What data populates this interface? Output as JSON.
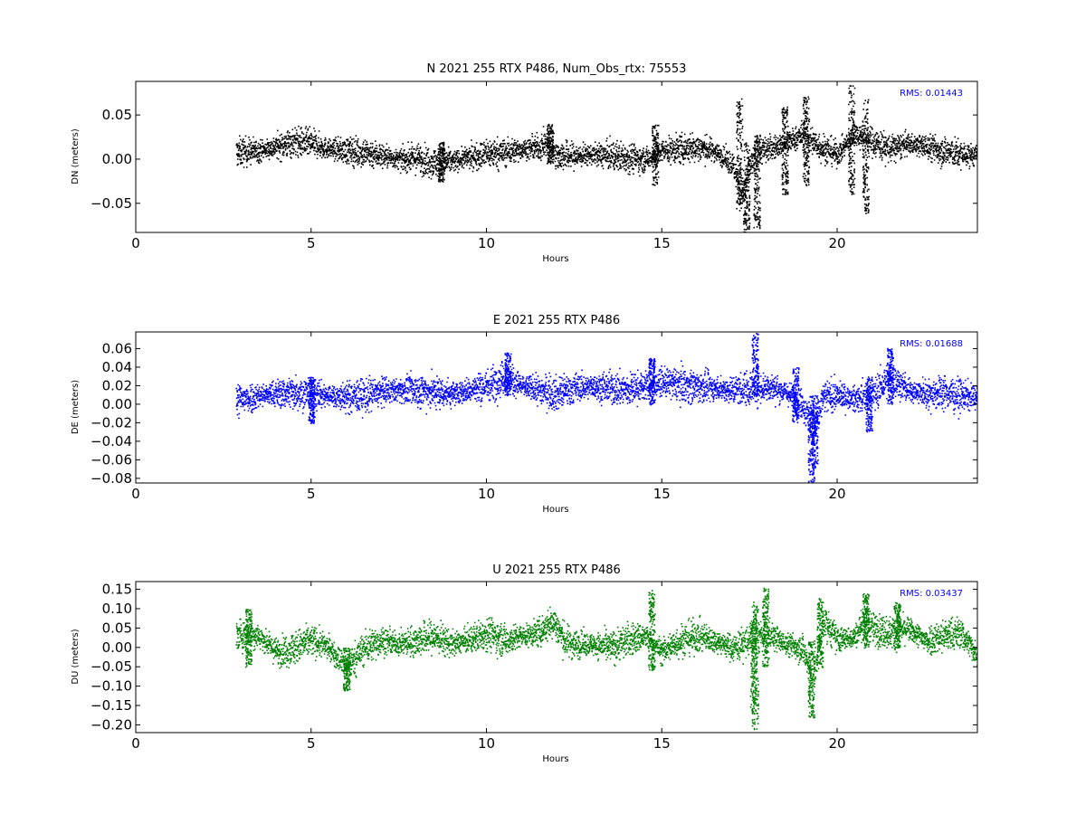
{
  "colors": {
    "black": "#000000",
    "blue": "#0000ff",
    "green": "#008000"
  },
  "chart_data": [
    {
      "type": "scatter",
      "title": "N 2021 255 RTX  P486, Num_Obs_rtx: 75553",
      "xlabel": "Hours",
      "ylabel": "DN (meters)",
      "xlim": [
        0,
        24
      ],
      "ylim": [
        -0.083,
        0.088
      ],
      "xticks": [
        0,
        5,
        10,
        15,
        20
      ],
      "yticks": [
        -0.05,
        0.0,
        0.05
      ],
      "ytick_labels": [
        "−0.05",
        "0.00",
        "0.05"
      ],
      "x_range": [
        2.85,
        24.0
      ],
      "annotation": "RMS:  0.01443",
      "color": "#000000",
      "series": [
        {
          "points": [
            [
              2.9,
              0.008
            ],
            [
              3.0,
              0.009
            ],
            [
              3.5,
              0.01
            ],
            [
              4.0,
              0.015
            ],
            [
              4.5,
              0.02
            ],
            [
              5.0,
              0.018
            ],
            [
              5.5,
              0.012
            ],
            [
              6.0,
              0.01
            ],
            [
              6.5,
              0.008
            ],
            [
              7.0,
              0.005
            ],
            [
              7.5,
              0.0
            ],
            [
              8.0,
              0.002
            ],
            [
              8.5,
              -0.003
            ],
            [
              9.0,
              -0.002
            ],
            [
              9.5,
              0.003
            ],
            [
              10.0,
              0.007
            ],
            [
              10.5,
              0.008
            ],
            [
              11.0,
              0.012
            ],
            [
              11.5,
              0.014
            ],
            [
              11.8,
              0.02
            ],
            [
              12.0,
              0.005
            ],
            [
              12.5,
              0.004
            ],
            [
              13.0,
              0.006
            ],
            [
              13.5,
              0.004
            ],
            [
              14.0,
              0.003
            ],
            [
              14.5,
              0.0
            ],
            [
              15.0,
              0.01
            ],
            [
              15.5,
              0.012
            ],
            [
              16.0,
              0.014
            ],
            [
              16.5,
              0.01
            ],
            [
              17.0,
              -0.005
            ],
            [
              17.3,
              -0.04
            ],
            [
              17.5,
              -0.01
            ],
            [
              17.7,
              0.01
            ],
            [
              18.0,
              0.012
            ],
            [
              18.5,
              0.018
            ],
            [
              19.0,
              0.028
            ],
            [
              19.5,
              0.015
            ],
            [
              20.0,
              0.006
            ],
            [
              20.5,
              0.03
            ],
            [
              21.0,
              0.02
            ],
            [
              21.5,
              0.012
            ],
            [
              22.0,
              0.018
            ],
            [
              22.5,
              0.015
            ],
            [
              23.0,
              0.01
            ],
            [
              23.5,
              0.006
            ],
            [
              24.0,
              0.005
            ]
          ],
          "spread": 0.011,
          "spikes": [
            {
              "x": 17.4,
              "low": -0.082,
              "high": 0.02
            },
            {
              "x": 17.7,
              "low": -0.078,
              "high": 0.03
            },
            {
              "x": 17.2,
              "low": -0.06,
              "high": 0.07
            },
            {
              "x": 18.5,
              "low": -0.04,
              "high": 0.06
            },
            {
              "x": 19.1,
              "low": -0.03,
              "high": 0.072
            },
            {
              "x": 20.4,
              "low": -0.04,
              "high": 0.085
            },
            {
              "x": 20.8,
              "low": -0.062,
              "high": 0.07
            },
            {
              "x": 11.8,
              "low": -0.005,
              "high": 0.04
            },
            {
              "x": 14.8,
              "low": -0.03,
              "high": 0.04
            },
            {
              "x": 8.7,
              "low": -0.025,
              "high": 0.02
            }
          ]
        }
      ]
    },
    {
      "type": "scatter",
      "title": "E 2021 255 RTX  P486",
      "xlabel": "Hours",
      "ylabel": "DE (meters)",
      "xlim": [
        0,
        24
      ],
      "ylim": [
        -0.085,
        0.078
      ],
      "xticks": [
        0,
        5,
        10,
        15,
        20
      ],
      "yticks": [
        -0.08,
        -0.06,
        -0.04,
        -0.02,
        0.0,
        0.02,
        0.04,
        0.06
      ],
      "ytick_labels": [
        "−0.08",
        "−0.06",
        "−0.04",
        "−0.02",
        "0.00",
        "0.02",
        "0.04",
        "0.06"
      ],
      "x_range": [
        2.85,
        24.0
      ],
      "annotation": "RMS:  0.01688",
      "color": "#0000ff",
      "series": [
        {
          "points": [
            [
              2.9,
              0.005
            ],
            [
              3.5,
              0.01
            ],
            [
              4.0,
              0.012
            ],
            [
              4.5,
              0.014
            ],
            [
              5.0,
              0.012
            ],
            [
              5.5,
              0.01
            ],
            [
              6.0,
              0.008
            ],
            [
              6.5,
              0.01
            ],
            [
              7.0,
              0.014
            ],
            [
              7.5,
              0.016
            ],
            [
              8.0,
              0.016
            ],
            [
              8.5,
              0.014
            ],
            [
              9.0,
              0.012
            ],
            [
              9.5,
              0.016
            ],
            [
              10.0,
              0.02
            ],
            [
              10.5,
              0.03
            ],
            [
              11.0,
              0.02
            ],
            [
              11.5,
              0.016
            ],
            [
              12.0,
              0.012
            ],
            [
              12.5,
              0.018
            ],
            [
              13.0,
              0.02
            ],
            [
              13.5,
              0.018
            ],
            [
              14.0,
              0.016
            ],
            [
              14.5,
              0.02
            ],
            [
              15.0,
              0.024
            ],
            [
              15.5,
              0.022
            ],
            [
              16.0,
              0.02
            ],
            [
              16.5,
              0.018
            ],
            [
              17.0,
              0.016
            ],
            [
              17.5,
              0.018
            ],
            [
              18.0,
              0.02
            ],
            [
              18.5,
              0.014
            ],
            [
              19.0,
              0.0
            ],
            [
              19.3,
              -0.03
            ],
            [
              19.6,
              0.008
            ],
            [
              20.0,
              0.01
            ],
            [
              20.5,
              0.006
            ],
            [
              21.0,
              0.01
            ],
            [
              21.5,
              0.03
            ],
            [
              22.0,
              0.016
            ],
            [
              22.5,
              0.012
            ],
            [
              23.0,
              0.014
            ],
            [
              23.5,
              0.01
            ],
            [
              24.0,
              0.008
            ]
          ],
          "spread": 0.012,
          "spikes": [
            {
              "x": 17.65,
              "low": 0.01,
              "high": 0.077
            },
            {
              "x": 19.25,
              "low": -0.085,
              "high": 0.01
            },
            {
              "x": 19.35,
              "low": -0.07,
              "high": 0.01
            },
            {
              "x": 14.7,
              "low": 0.0,
              "high": 0.05
            },
            {
              "x": 10.6,
              "low": 0.01,
              "high": 0.056
            },
            {
              "x": 21.5,
              "low": 0.0,
              "high": 0.062
            },
            {
              "x": 20.9,
              "low": -0.03,
              "high": 0.03
            },
            {
              "x": 5.0,
              "low": -0.02,
              "high": 0.03
            },
            {
              "x": 18.8,
              "low": -0.02,
              "high": 0.04
            }
          ]
        }
      ]
    },
    {
      "type": "scatter",
      "title": "U 2021 255 RTX  P486",
      "xlabel": "Hours",
      "ylabel": "DU (meters)",
      "xlim": [
        0,
        24
      ],
      "ylim": [
        -0.22,
        0.17
      ],
      "xticks": [
        0,
        5,
        10,
        15,
        20
      ],
      "yticks": [
        -0.2,
        -0.15,
        -0.1,
        -0.05,
        0.0,
        0.05,
        0.1,
        0.15
      ],
      "ytick_labels": [
        "−0.20",
        "−0.15",
        "−0.10",
        "−0.05",
        "0.00",
        "0.05",
        "0.10",
        "0.15"
      ],
      "x_range": [
        2.85,
        24.0
      ],
      "annotation": "RMS:  0.03437",
      "color": "#008000",
      "series": [
        {
          "points": [
            [
              2.9,
              0.03
            ],
            [
              3.2,
              0.04
            ],
            [
              3.5,
              0.03
            ],
            [
              4.0,
              -0.01
            ],
            [
              4.5,
              0.0
            ],
            [
              5.0,
              0.02
            ],
            [
              5.5,
              0.0
            ],
            [
              6.0,
              -0.05
            ],
            [
              6.5,
              0.0
            ],
            [
              7.0,
              0.02
            ],
            [
              7.5,
              0.01
            ],
            [
              8.0,
              0.02
            ],
            [
              8.5,
              0.03
            ],
            [
              9.0,
              0.01
            ],
            [
              9.5,
              0.02
            ],
            [
              10.0,
              0.04
            ],
            [
              10.5,
              0.02
            ],
            [
              11.0,
              0.03
            ],
            [
              11.5,
              0.04
            ],
            [
              11.9,
              0.07
            ],
            [
              12.2,
              0.02
            ],
            [
              12.5,
              0.01
            ],
            [
              13.0,
              0.01
            ],
            [
              13.5,
              0.0
            ],
            [
              14.0,
              0.02
            ],
            [
              14.5,
              0.03
            ],
            [
              15.0,
              -0.01
            ],
            [
              15.5,
              0.02
            ],
            [
              16.0,
              0.03
            ],
            [
              16.5,
              0.02
            ],
            [
              17.0,
              0.0
            ],
            [
              17.5,
              0.02
            ],
            [
              18.0,
              0.04
            ],
            [
              18.5,
              0.01
            ],
            [
              19.0,
              0.0
            ],
            [
              19.3,
              -0.08
            ],
            [
              19.6,
              0.07
            ],
            [
              20.0,
              0.02
            ],
            [
              20.5,
              0.03
            ],
            [
              20.8,
              0.08
            ],
            [
              21.0,
              0.05
            ],
            [
              21.5,
              0.04
            ],
            [
              22.0,
              0.05
            ],
            [
              22.5,
              0.02
            ],
            [
              23.0,
              0.03
            ],
            [
              23.5,
              0.04
            ],
            [
              24.0,
              -0.02
            ]
          ],
          "spread": 0.028,
          "spikes": [
            {
              "x": 17.65,
              "low": -0.21,
              "high": 0.12
            },
            {
              "x": 17.6,
              "low": -0.17,
              "high": 0.08
            },
            {
              "x": 19.25,
              "low": -0.18,
              "high": 0.02
            },
            {
              "x": 19.5,
              "low": -0.05,
              "high": 0.13
            },
            {
              "x": 17.95,
              "low": -0.05,
              "high": 0.16
            },
            {
              "x": 14.7,
              "low": -0.06,
              "high": 0.15
            },
            {
              "x": 20.8,
              "low": 0.0,
              "high": 0.14
            },
            {
              "x": 6.0,
              "low": -0.11,
              "high": 0.0
            },
            {
              "x": 3.2,
              "low": -0.05,
              "high": 0.1
            },
            {
              "x": 21.7,
              "low": 0.0,
              "high": 0.12
            }
          ]
        }
      ]
    }
  ]
}
